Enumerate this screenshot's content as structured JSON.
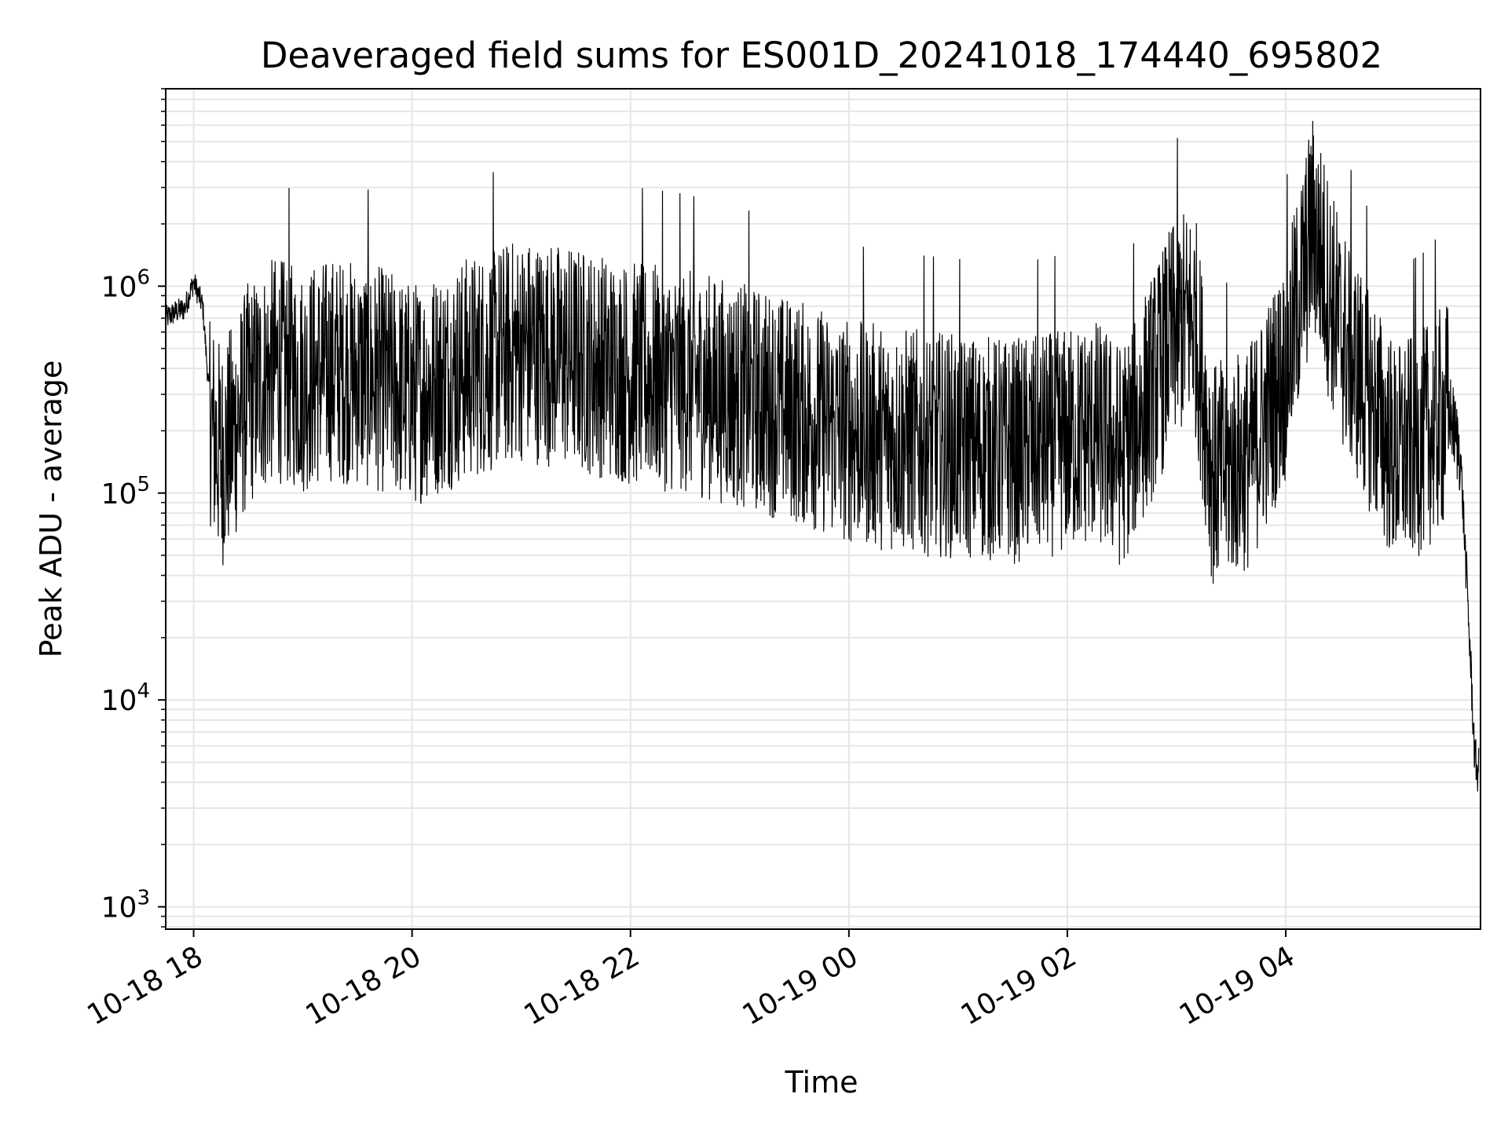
{
  "chart_data": {
    "type": "line",
    "title": "Deaveraged field sums for ES001D_20241018_174440_695802",
    "xlabel": "Time",
    "ylabel": "Peak ADU - average",
    "xscale": "time",
    "yscale": "log",
    "xlim": [
      "2024-10-18T17:44:40",
      "2024-10-19T05:47:00"
    ],
    "ylim": [
      780,
      9000000
    ],
    "x_ticks": [
      {
        "value": "2024-10-18T18:00:00",
        "label": "10-18 18"
      },
      {
        "value": "2024-10-18T20:00:00",
        "label": "10-18 20"
      },
      {
        "value": "2024-10-18T22:00:00",
        "label": "10-18 22"
      },
      {
        "value": "2024-10-19T00:00:00",
        "label": "10-19 00"
      },
      {
        "value": "2024-10-19T02:00:00",
        "label": "10-19 02"
      },
      {
        "value": "2024-10-19T04:00:00",
        "label": "10-19 04"
      }
    ],
    "y_ticks": [
      {
        "value": 1000,
        "base": "10",
        "exp": "3"
      },
      {
        "value": 10000,
        "base": "10",
        "exp": "4"
      },
      {
        "value": 100000,
        "base": "10",
        "exp": "5"
      },
      {
        "value": 1000000,
        "base": "10",
        "exp": "6"
      }
    ],
    "grid": true,
    "line_color": "#000000",
    "grid_color": "#e6e6e6",
    "series": [
      {
        "x": [
          "2024-10-18T17:44:40",
          "2024-10-18T17:50:00",
          "2024-10-18T17:55:00",
          "2024-10-18T18:00:00",
          "2024-10-18T18:05:00",
          "2024-10-18T18:10:00",
          "2024-10-18T18:15:00",
          "2024-10-18T18:20:00",
          "2024-10-18T18:30:00",
          "2024-10-18T18:45:00",
          "2024-10-18T19:00:00",
          "2024-10-18T19:15:00",
          "2024-10-18T19:30:00",
          "2024-10-18T19:45:00",
          "2024-10-18T20:00:00",
          "2024-10-18T20:30:00",
          "2024-10-18T21:00:00",
          "2024-10-18T21:30:00",
          "2024-10-18T22:00:00",
          "2024-10-18T22:30:00",
          "2024-10-18T23:00:00",
          "2024-10-18T23:30:00",
          "2024-10-19T00:00:00",
          "2024-10-19T00:30:00",
          "2024-10-19T01:00:00",
          "2024-10-19T01:30:00",
          "2024-10-19T02:00:00",
          "2024-10-19T02:15:00",
          "2024-10-19T02:30:00",
          "2024-10-19T02:45:00",
          "2024-10-19T03:00:00",
          "2024-10-19T03:10:00",
          "2024-10-19T03:20:00",
          "2024-10-19T03:40:00",
          "2024-10-19T04:00:00",
          "2024-10-19T04:15:00",
          "2024-10-19T04:30:00",
          "2024-10-19T04:45:00",
          "2024-10-19T05:00:00",
          "2024-10-19T05:15:00",
          "2024-10-19T05:30:00",
          "2024-10-19T05:36:00",
          "2024-10-19T05:40:00",
          "2024-10-19T05:44:00",
          "2024-10-19T05:46:00"
        ],
        "y": [
          700000,
          750000,
          780000,
          1050000,
          800000,
          200000,
          150000,
          180000,
          300000,
          400000,
          350000,
          400000,
          380000,
          350000,
          300000,
          400000,
          500000,
          450000,
          380000,
          350000,
          300000,
          250000,
          200000,
          180000,
          170000,
          160000,
          180000,
          200000,
          150000,
          300000,
          650000,
          700000,
          120000,
          150000,
          400000,
          2000000,
          600000,
          300000,
          150000,
          180000,
          250000,
          150000,
          30000,
          5000,
          4500
        ]
      }
    ]
  }
}
